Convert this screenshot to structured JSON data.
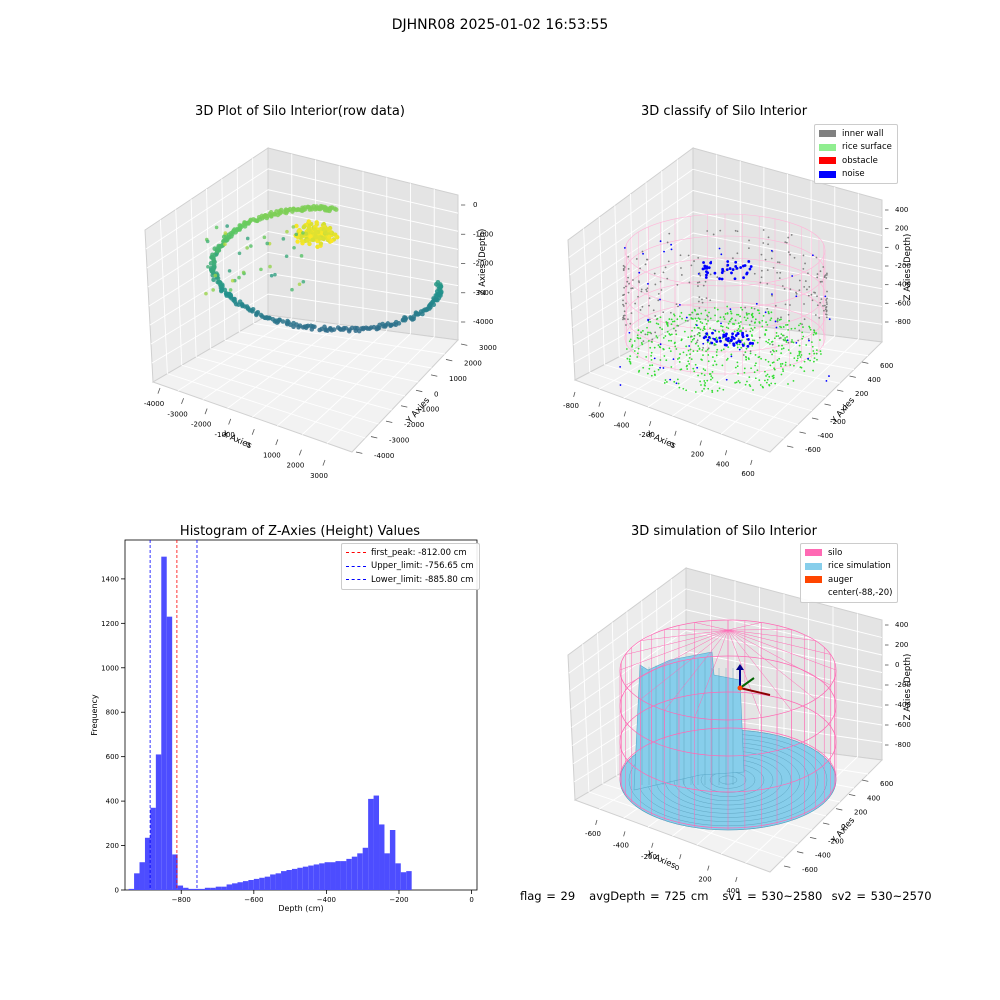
{
  "figure": {
    "title": "DJHNR08 2025-01-02 16:53:55"
  },
  "panels": {
    "raw": {
      "title": "3D Plot of Silo Interior(row data)",
      "xlabel": "X Axies",
      "ylabel": "Y Axies",
      "zlabel": "Z Axies (Depth)",
      "xticks": [
        "-4000",
        "-3000",
        "-2000",
        "-1000",
        "0",
        "1000",
        "2000",
        "3000"
      ],
      "yticks": [
        "-4000",
        "-3000",
        "-2000",
        "-1000",
        "0",
        "1000",
        "2000",
        "3000"
      ],
      "zticks": [
        "-4000",
        "-3000",
        "-2000",
        "-1000",
        "0"
      ]
    },
    "classify": {
      "title": "3D classify of Silo Interior",
      "xlabel": "X Axies",
      "ylabel": "Y Axies",
      "zlabel": "Z Axies (Depth)",
      "xticks": [
        "-800",
        "-600",
        "-400",
        "-200",
        "0",
        "200",
        "400",
        "600"
      ],
      "yticks": [
        "-600",
        "-400",
        "-200",
        "0",
        "200",
        "400",
        "600"
      ],
      "zticks": [
        "-800",
        "-600",
        "-400",
        "-200",
        "0",
        "200",
        "400"
      ],
      "legend": [
        {
          "label": "inner wall",
          "color": "#808080"
        },
        {
          "label": "rice surface",
          "color": "#90ee90"
        },
        {
          "label": "obstacle",
          "color": "#ff0000"
        },
        {
          "label": "noise",
          "color": "#0000ff"
        }
      ]
    },
    "simulation": {
      "title": "3D simulation of Silo Interior",
      "xlabel": "X Axies",
      "ylabel": "Y Axies",
      "zlabel": "Z Axies (Depth)",
      "xticks": [
        "-600",
        "-400",
        "-200",
        "0",
        "200",
        "400"
      ],
      "yticks": [
        "-600",
        "-400",
        "-200",
        "0",
        "200",
        "400",
        "600"
      ],
      "zticks": [
        "-800",
        "-600",
        "-400",
        "-200",
        "0",
        "200",
        "400"
      ],
      "legend": [
        {
          "label": "silo",
          "color": "#ff69b4"
        },
        {
          "label": "rice simulation",
          "color": "#87ceeb"
        },
        {
          "label": "auger",
          "color": "#ff4500"
        },
        {
          "label": "center(-88,-20)",
          "color": ""
        }
      ]
    }
  },
  "chart_data": {
    "type": "bar",
    "title": "Histogram of Z-Axies (Height) Values",
    "xlabel": "Depth (cm)",
    "ylabel": "Frequency",
    "xlim": [
      -955,
      15
    ],
    "ylim": [
      0,
      1575
    ],
    "xticks": [
      -800,
      -600,
      -400,
      -200,
      0
    ],
    "yticks": [
      0,
      200,
      400,
      600,
      800,
      1000,
      1200,
      1400
    ],
    "bin_width": 15,
    "bin_start": -945,
    "values": [
      5,
      75,
      125,
      235,
      370,
      610,
      1500,
      1230,
      160,
      20,
      10,
      5,
      5,
      5,
      10,
      10,
      15,
      15,
      25,
      30,
      35,
      40,
      45,
      50,
      55,
      60,
      70,
      75,
      85,
      90,
      95,
      100,
      105,
      110,
      115,
      120,
      125,
      125,
      130,
      130,
      140,
      150,
      165,
      190,
      410,
      425,
      295,
      165,
      270,
      120,
      80,
      85
    ],
    "lines": [
      {
        "label": "first_peak: -812.00 cm",
        "x": -812.0,
        "color": "#ff0000"
      },
      {
        "label": "Upper_limit: -756.65 cm",
        "x": -756.65,
        "color": "#0000ff"
      },
      {
        "label": "Lower_limit: -885.80 cm",
        "x": -885.8,
        "color": "#0000ff"
      }
    ],
    "bar_color": "#4d4dff"
  },
  "status": {
    "flag": "flag = 29",
    "avg_depth": "avgDepth = 725 cm",
    "sv1": "sv1 = 530~2580",
    "sv2": "sv2 = 530~2570"
  }
}
